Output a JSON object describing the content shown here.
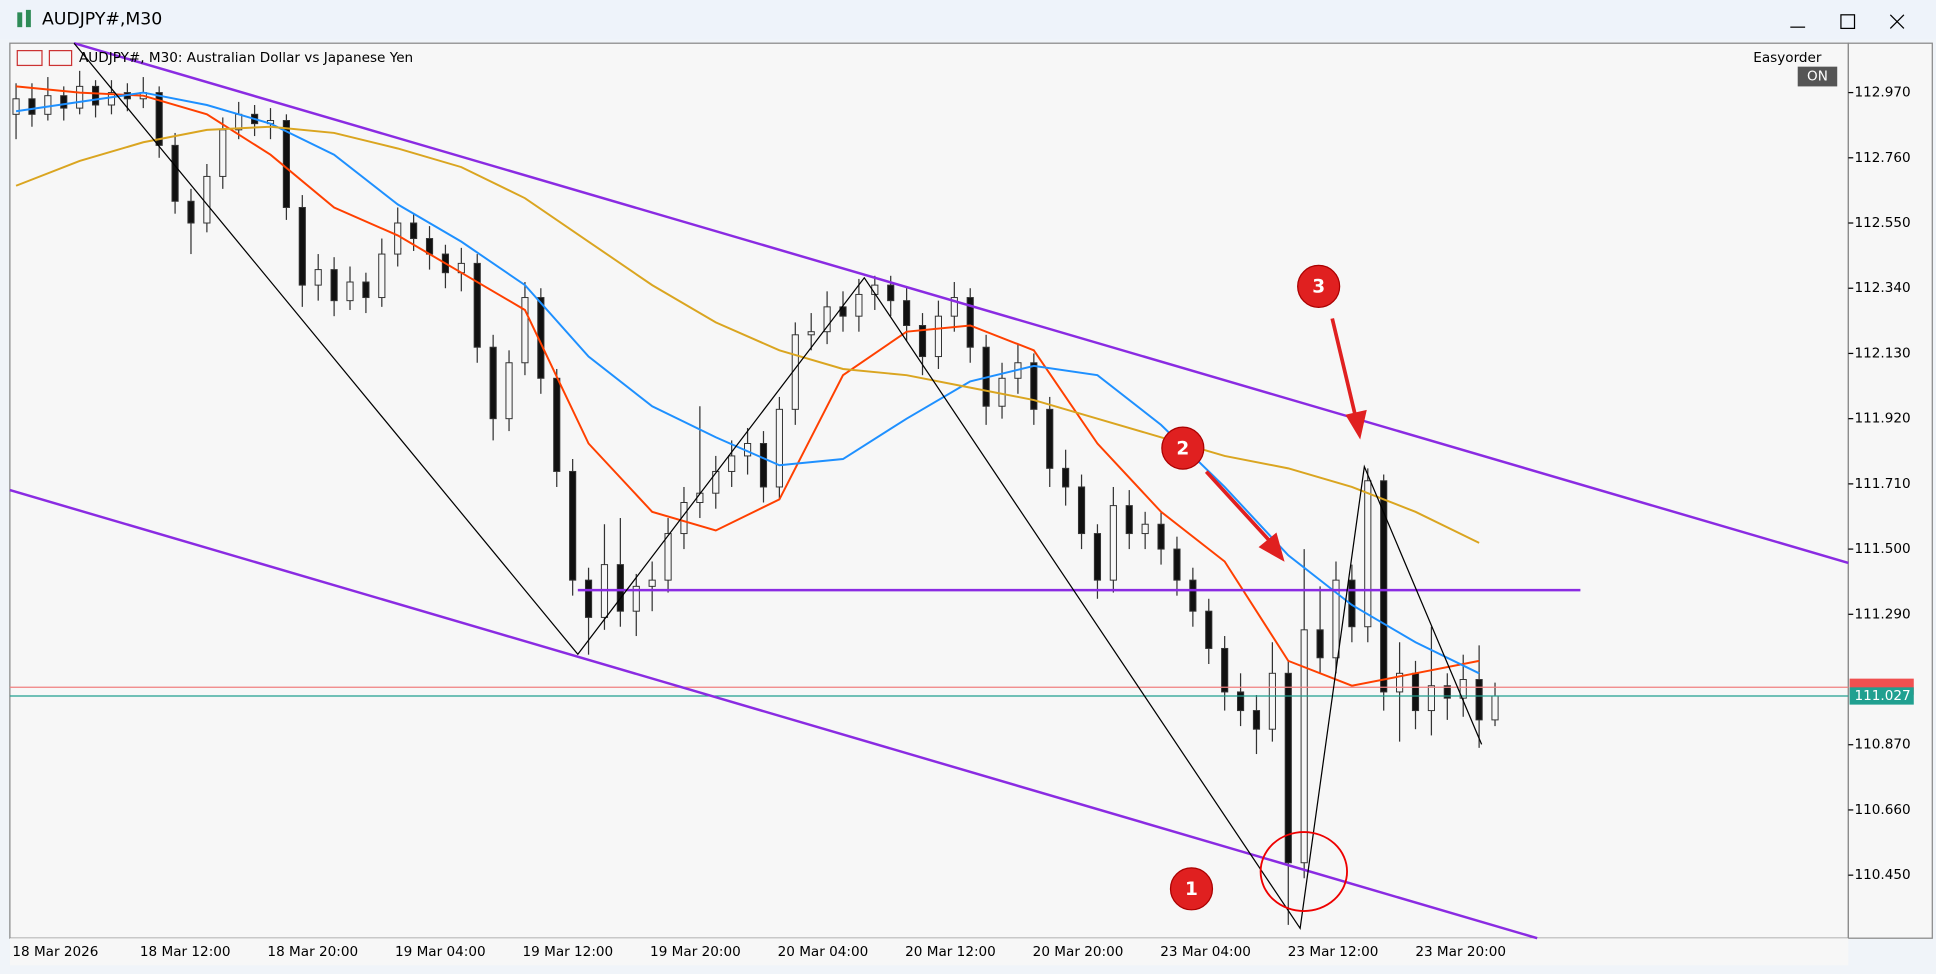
{
  "window": {
    "title": "AUDJPY#,M30"
  },
  "chart_data": {
    "type": "candlestick",
    "header": "AUDJPY#, M30:  Australian Dollar vs Japanese Yen",
    "plugin": {
      "name": "Easyorder",
      "button": "ON"
    },
    "annotations": [
      "1",
      "2",
      "3"
    ],
    "ylim": [
      110.247,
      113.129
    ],
    "yticks": [
      {
        "value": 112.97,
        "label": "112.970"
      },
      {
        "value": 112.76,
        "label": "112.760"
      },
      {
        "value": 112.55,
        "label": "112.550"
      },
      {
        "value": 112.34,
        "label": "112.340"
      },
      {
        "value": 112.13,
        "label": "112.130"
      },
      {
        "value": 111.92,
        "label": "111.920"
      },
      {
        "value": 111.71,
        "label": "111.710"
      },
      {
        "value": 111.5,
        "label": "111.500"
      },
      {
        "value": 111.29,
        "label": "111.290"
      },
      {
        "value": 110.87,
        "label": "110.870"
      },
      {
        "value": 110.66,
        "label": "110.660"
      },
      {
        "value": 110.45,
        "label": "110.450"
      }
    ],
    "x_labels": [
      "18 Mar 2026",
      "18 Mar 12:00",
      "18 Mar 20:00",
      "19 Mar 04:00",
      "19 Mar 12:00",
      "19 Mar 20:00",
      "20 Mar 04:00",
      "20 Mar 12:00",
      "20 Mar 20:00",
      "23 Mar 04:00",
      "23 Mar 12:00",
      "23 Mar 20:00"
    ],
    "bid": 111.027,
    "ask": 111.055,
    "ohlc": [
      [
        112.9,
        113.0,
        112.82,
        112.95
      ],
      [
        112.95,
        113.0,
        112.86,
        112.9
      ],
      [
        112.9,
        113.02,
        112.88,
        112.96
      ],
      [
        112.96,
        112.99,
        112.88,
        112.92
      ],
      [
        112.92,
        113.04,
        112.9,
        112.99
      ],
      [
        112.99,
        113.01,
        112.89,
        112.93
      ],
      [
        112.93,
        113.01,
        112.9,
        112.97
      ],
      [
        112.97,
        113.0,
        112.91,
        112.95
      ],
      [
        112.95,
        113.02,
        112.92,
        112.97
      ],
      [
        112.97,
        112.99,
        112.76,
        112.8
      ],
      [
        112.8,
        112.84,
        112.58,
        112.62
      ],
      [
        112.62,
        112.66,
        112.45,
        112.55
      ],
      [
        112.55,
        112.74,
        112.52,
        112.7
      ],
      [
        112.7,
        112.89,
        112.66,
        112.85
      ],
      [
        112.85,
        112.94,
        112.82,
        112.9
      ],
      [
        112.9,
        112.93,
        112.83,
        112.87
      ],
      [
        112.87,
        112.92,
        112.82,
        112.88
      ],
      [
        112.88,
        112.9,
        112.56,
        112.6
      ],
      [
        112.6,
        112.64,
        112.28,
        112.35
      ],
      [
        112.35,
        112.45,
        112.3,
        112.4
      ],
      [
        112.4,
        112.44,
        112.25,
        112.3
      ],
      [
        112.3,
        112.41,
        112.27,
        112.36
      ],
      [
        112.36,
        112.39,
        112.26,
        112.31
      ],
      [
        112.31,
        112.5,
        112.28,
        112.45
      ],
      [
        112.45,
        112.6,
        112.41,
        112.55
      ],
      [
        112.55,
        112.58,
        112.46,
        112.5
      ],
      [
        112.5,
        112.54,
        112.4,
        112.45
      ],
      [
        112.45,
        112.48,
        112.34,
        112.39
      ],
      [
        112.39,
        112.47,
        112.33,
        112.42
      ],
      [
        112.42,
        112.45,
        112.1,
        112.15
      ],
      [
        112.15,
        112.19,
        111.85,
        111.92
      ],
      [
        111.92,
        112.14,
        111.88,
        112.1
      ],
      [
        112.1,
        112.36,
        112.06,
        112.31
      ],
      [
        112.31,
        112.34,
        112.0,
        112.05
      ],
      [
        112.05,
        112.08,
        111.7,
        111.75
      ],
      [
        111.75,
        111.79,
        111.35,
        111.4
      ],
      [
        111.4,
        111.44,
        111.16,
        111.28
      ],
      [
        111.28,
        111.58,
        111.24,
        111.45
      ],
      [
        111.45,
        111.6,
        111.25,
        111.3
      ],
      [
        111.3,
        111.42,
        111.22,
        111.38
      ],
      [
        111.38,
        111.46,
        111.3,
        111.4
      ],
      [
        111.4,
        111.6,
        111.36,
        111.55
      ],
      [
        111.55,
        111.7,
        111.5,
        111.65
      ],
      [
        111.65,
        111.96,
        111.6,
        111.68
      ],
      [
        111.68,
        111.8,
        111.63,
        111.75
      ],
      [
        111.75,
        111.85,
        111.7,
        111.8
      ],
      [
        111.8,
        111.89,
        111.74,
        111.84
      ],
      [
        111.84,
        111.88,
        111.65,
        111.7
      ],
      [
        111.7,
        111.99,
        111.66,
        111.95
      ],
      [
        111.95,
        112.23,
        111.9,
        112.19
      ],
      [
        112.19,
        112.26,
        112.14,
        112.2
      ],
      [
        112.2,
        112.33,
        112.16,
        112.28
      ],
      [
        112.28,
        112.33,
        112.2,
        112.25
      ],
      [
        112.25,
        112.37,
        112.2,
        112.32
      ],
      [
        112.32,
        112.38,
        112.27,
        112.35
      ],
      [
        112.35,
        112.38,
        112.25,
        112.3
      ],
      [
        112.3,
        112.34,
        112.17,
        112.22
      ],
      [
        112.22,
        112.26,
        112.06,
        112.12
      ],
      [
        112.12,
        112.3,
        112.08,
        112.25
      ],
      [
        112.25,
        112.36,
        112.2,
        112.31
      ],
      [
        112.31,
        112.34,
        112.1,
        112.15
      ],
      [
        112.15,
        112.19,
        111.9,
        111.96
      ],
      [
        111.96,
        112.1,
        111.92,
        112.05
      ],
      [
        112.05,
        112.16,
        112.0,
        112.1
      ],
      [
        112.1,
        112.13,
        111.9,
        111.95
      ],
      [
        111.95,
        111.99,
        111.7,
        111.76
      ],
      [
        111.76,
        111.82,
        111.64,
        111.7
      ],
      [
        111.7,
        111.74,
        111.5,
        111.55
      ],
      [
        111.55,
        111.58,
        111.34,
        111.4
      ],
      [
        111.4,
        111.7,
        111.36,
        111.64
      ],
      [
        111.64,
        111.69,
        111.5,
        111.55
      ],
      [
        111.55,
        111.62,
        111.5,
        111.58
      ],
      [
        111.58,
        111.62,
        111.45,
        111.5
      ],
      [
        111.5,
        111.54,
        111.35,
        111.4
      ],
      [
        111.4,
        111.44,
        111.25,
        111.3
      ],
      [
        111.3,
        111.34,
        111.13,
        111.18
      ],
      [
        111.18,
        111.22,
        110.98,
        111.04
      ],
      [
        111.04,
        111.1,
        110.93,
        110.98
      ],
      [
        110.98,
        111.03,
        110.84,
        110.92
      ],
      [
        110.92,
        111.2,
        110.88,
        111.1
      ],
      [
        111.1,
        111.14,
        110.29,
        110.49
      ],
      [
        110.49,
        111.5,
        110.44,
        111.24
      ],
      [
        111.24,
        111.38,
        111.1,
        111.15
      ],
      [
        111.15,
        111.46,
        111.1,
        111.4
      ],
      [
        111.4,
        111.45,
        111.2,
        111.25
      ],
      [
        111.25,
        111.76,
        111.2,
        111.72
      ],
      [
        111.72,
        111.74,
        110.98,
        111.04
      ],
      [
        111.04,
        111.2,
        110.88,
        111.1
      ],
      [
        111.1,
        111.14,
        110.92,
        110.98
      ],
      [
        110.98,
        111.25,
        110.9,
        111.06
      ],
      [
        111.06,
        111.1,
        110.95,
        111.02
      ],
      [
        111.02,
        111.16,
        110.96,
        111.08
      ],
      [
        111.08,
        111.19,
        110.86,
        110.95
      ],
      [
        110.95,
        111.07,
        110.93,
        111.027
      ]
    ],
    "ma_x": [
      0,
      4,
      8,
      12,
      16,
      20,
      24,
      28,
      32,
      36,
      40,
      44,
      48,
      52,
      56,
      60,
      64,
      68,
      72,
      76,
      80,
      84,
      88,
      92
    ],
    "series": [
      {
        "color": "#ff4000",
        "values": [
          112.99,
          112.97,
          112.96,
          112.9,
          112.77,
          112.6,
          112.51,
          112.39,
          112.27,
          111.84,
          111.62,
          111.56,
          111.66,
          112.06,
          112.2,
          112.22,
          112.14,
          111.84,
          111.62,
          111.46,
          111.14,
          111.06,
          111.1,
          111.14
        ]
      },
      {
        "color": "#1e90ff",
        "values": [
          112.91,
          112.94,
          112.97,
          112.93,
          112.87,
          112.77,
          112.61,
          112.49,
          112.35,
          112.12,
          111.96,
          111.86,
          111.77,
          111.79,
          111.92,
          112.04,
          112.09,
          112.06,
          111.9,
          111.7,
          111.48,
          111.32,
          111.2,
          111.1
        ]
      },
      {
        "color": "#daa520",
        "values": [
          112.67,
          112.75,
          112.81,
          112.85,
          112.86,
          112.84,
          112.79,
          112.73,
          112.63,
          112.49,
          112.35,
          112.23,
          112.14,
          112.08,
          112.06,
          112.02,
          111.98,
          111.92,
          111.86,
          111.8,
          111.76,
          111.7,
          111.62,
          111.52
        ]
      }
    ]
  }
}
